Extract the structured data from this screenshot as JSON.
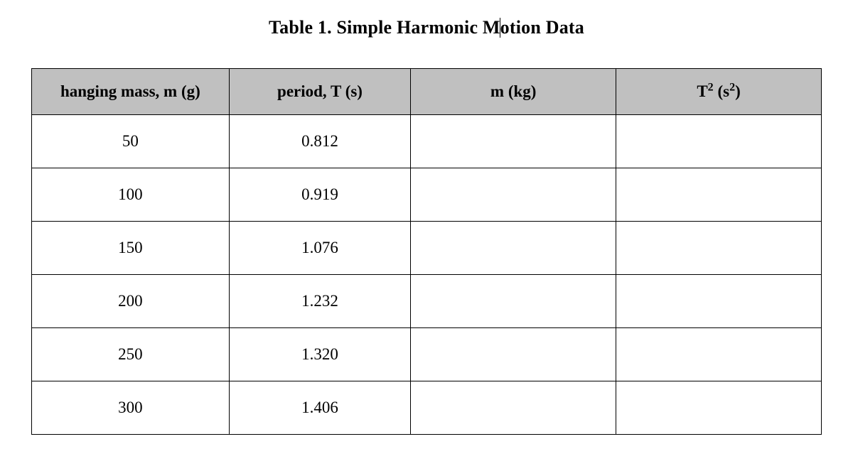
{
  "title_pre": "Table 1. Simple Harmonic M",
  "title_post": "otion Data",
  "table": {
    "header_bg": "#c0c0c0",
    "border_color": "#000000",
    "columns": [
      {
        "label_plain": "hanging mass, m (g)",
        "has_sup": false
      },
      {
        "label_plain": "period, T (s)",
        "has_sup": false
      },
      {
        "label_plain": "m (kg)",
        "has_sup": false
      },
      {
        "label_pre": "T",
        "sup1": "2",
        "mid": " (s",
        "sup2": "2",
        "post": ")",
        "has_sup": true
      }
    ],
    "rows": [
      {
        "mass_g": "50",
        "period_s": "0.812",
        "mass_kg": "",
        "t2": ""
      },
      {
        "mass_g": "100",
        "period_s": "0.919",
        "mass_kg": "",
        "t2": ""
      },
      {
        "mass_g": "150",
        "period_s": "1.076",
        "mass_kg": "",
        "t2": ""
      },
      {
        "mass_g": "200",
        "period_s": "1.232",
        "mass_kg": "",
        "t2": ""
      },
      {
        "mass_g": "250",
        "period_s": "1.320",
        "mass_kg": "",
        "t2": ""
      },
      {
        "mass_g": "300",
        "period_s": "1.406",
        "mass_kg": "",
        "t2": ""
      }
    ]
  }
}
